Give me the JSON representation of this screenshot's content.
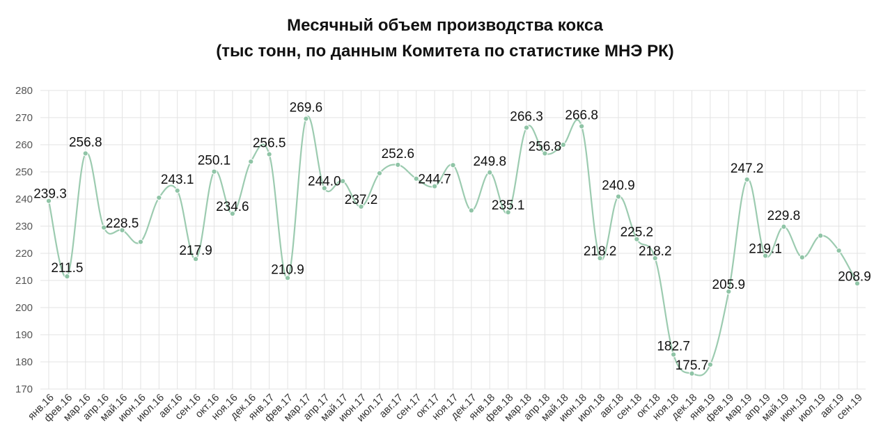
{
  "chart_data": {
    "type": "line",
    "title": "Месячный объем производства кокса",
    "subtitle": "(тыс тонн, по данным Комитета по статистике МНЭ РК)",
    "ylim": [
      170,
      280
    ],
    "yticks": [
      170,
      180,
      190,
      200,
      210,
      220,
      230,
      240,
      250,
      260,
      270,
      280
    ],
    "grid": true,
    "line_color": "#9ccbb0",
    "marker_color": "#8fc4a6",
    "categories": [
      "янв.16",
      "фев.16",
      "мар.16",
      "апр.16",
      "май.16",
      "июн.16",
      "июл.16",
      "авг.16",
      "сен.16",
      "окт.16",
      "ноя.16",
      "дек.16",
      "янв.17",
      "фев.17",
      "мар.17",
      "апр.17",
      "май.17",
      "июн.17",
      "июл.17",
      "авг.17",
      "сен.17",
      "окт.17",
      "ноя.17",
      "дек.17",
      "янв.18",
      "фев.18",
      "мар.18",
      "апр.18",
      "май.18",
      "июн.18",
      "июл.18",
      "авг.18",
      "сен.18",
      "окт.18",
      "ноя.18",
      "дек.18",
      "янв.19",
      "фев.19",
      "мар.19",
      "апр.19",
      "май.19",
      "июн.19",
      "июл.19",
      "авг.19",
      "сен.19"
    ],
    "values": [
      239.3,
      211.5,
      256.8,
      229.5,
      228.5,
      224.2,
      240.5,
      243.1,
      217.9,
      250.1,
      234.6,
      253.8,
      256.5,
      210.9,
      269.6,
      244.0,
      246.6,
      237.2,
      249.5,
      252.6,
      247.5,
      244.7,
      252.5,
      235.8,
      249.8,
      235.1,
      266.3,
      256.8,
      260.0,
      266.8,
      218.2,
      240.9,
      225.2,
      218.2,
      182.7,
      175.7,
      179.0,
      205.9,
      247.2,
      219.1,
      229.8,
      218.5,
      226.5,
      221.0,
      208.9
    ],
    "data_labels": [
      "239.3",
      "211.5",
      "256.8",
      "",
      "228.5",
      "",
      "",
      "243.1",
      "217.9",
      "250.1",
      "234.6",
      "",
      "256.5",
      "210.9",
      "269.6",
      "244.0",
      "",
      "237.2",
      "",
      "252.6",
      "",
      "244.7",
      "",
      "",
      "249.8",
      "235.1",
      "266.3",
      "256.8",
      "",
      "266.8",
      "218.2",
      "240.9",
      "225.2",
      "218.2",
      "182.7",
      "175.7",
      "",
      "205.9",
      "247.2",
      "219.1",
      "229.8",
      "",
      "",
      "",
      "208.9"
    ]
  }
}
